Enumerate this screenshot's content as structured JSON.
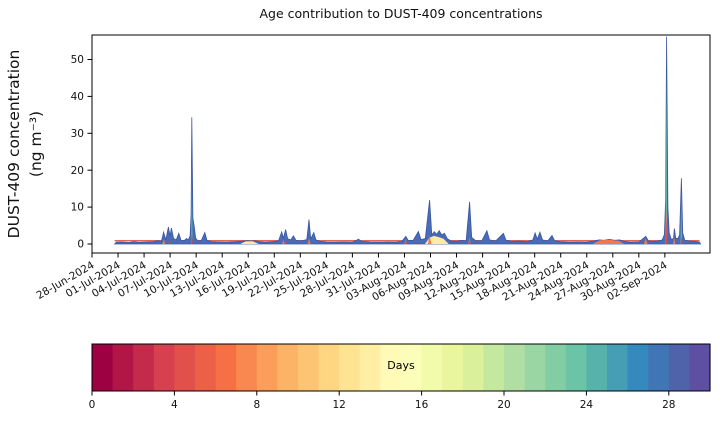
{
  "chart_data": {
    "type": "area",
    "title": "Age contribution to DUST-409 concentrations",
    "ylabel": [
      "DUST-409 concentration",
      "(ng m⁻³)"
    ],
    "xlabel": "",
    "grid": false,
    "legend": "none (colorbar encodes age)",
    "ylim": [
      -2.44,
      57.2
    ],
    "xlim_days": [
      0,
      71.2
    ],
    "y_ticks": [
      0,
      10,
      20,
      30,
      40,
      50
    ],
    "x_tick_days": [
      0,
      3,
      6,
      9,
      12,
      15,
      18,
      21,
      24,
      27,
      30,
      33,
      36,
      39,
      42,
      45,
      48,
      51,
      54,
      57,
      60,
      63,
      66
    ],
    "x_tick_labels": [
      "28-Jun-2024",
      "01-Jul-2024",
      "04-Jul-2024",
      "07-Jul-2024",
      "10-Jul-2024",
      "13-Jul-2024",
      "16-Jul-2024",
      "19-Jul-2024",
      "22-Jul-2024",
      "25-Jul-2024",
      "28-Jul-2024",
      "31-Jul-2024",
      "03-Aug-2024",
      "06-Aug-2024",
      "09-Aug-2024",
      "12-Aug-2024",
      "15-Aug-2024",
      "18-Aug-2024",
      "21-Aug-2024",
      "24-Aug-2024",
      "27-Aug-2024",
      "30-Aug-2024",
      "02-Sep-2024"
    ],
    "x_tick_rotation_deg": -30,
    "layers": [
      {
        "name": "old-age-total-area",
        "color": "#4a6bb5",
        "edge": "#3a57a3",
        "points": [
          [
            2.6,
            0
          ],
          [
            2.8,
            0.5
          ],
          [
            3.5,
            0.55
          ],
          [
            4.2,
            0.4
          ],
          [
            4.8,
            0.6
          ],
          [
            5.4,
            0.45
          ],
          [
            6.2,
            0.55
          ],
          [
            7.0,
            0.6
          ],
          [
            7.6,
            0.9
          ],
          [
            8.0,
            0.7
          ],
          [
            8.25,
            3.2
          ],
          [
            8.5,
            1.1
          ],
          [
            8.8,
            4.6
          ],
          [
            9.0,
            2.2
          ],
          [
            9.15,
            4.3
          ],
          [
            9.4,
            1.5
          ],
          [
            9.7,
            1.1
          ],
          [
            10.0,
            2.9
          ],
          [
            10.25,
            1.0
          ],
          [
            10.6,
            0.9
          ],
          [
            10.9,
            1.5
          ],
          [
            11.1,
            1.1
          ],
          [
            11.3,
            2.2
          ],
          [
            11.42,
            8
          ],
          [
            11.5,
            34.3
          ],
          [
            11.62,
            7
          ],
          [
            11.75,
            5.2
          ],
          [
            11.95,
            1.6
          ],
          [
            12.2,
            0.8
          ],
          [
            12.6,
            1.0
          ],
          [
            13.0,
            3.1
          ],
          [
            13.25,
            1.0
          ],
          [
            13.8,
            0.6
          ],
          [
            14.5,
            0.55
          ],
          [
            15.5,
            0.5
          ],
          [
            16.5,
            0.6
          ],
          [
            17.3,
            0.75
          ],
          [
            17.8,
            0.9
          ],
          [
            18.3,
            0.8
          ],
          [
            18.8,
            0.9
          ],
          [
            19.3,
            0.6
          ],
          [
            20,
            0.5
          ],
          [
            20.8,
            0.6
          ],
          [
            21.5,
            0.9
          ],
          [
            21.85,
            3.3
          ],
          [
            22.05,
            1.6
          ],
          [
            22.3,
            3.9
          ],
          [
            22.55,
            1.4
          ],
          [
            22.9,
            1.1
          ],
          [
            23.2,
            2.2
          ],
          [
            23.5,
            1.0
          ],
          [
            23.9,
            0.8
          ],
          [
            24.4,
            1.0
          ],
          [
            24.75,
            1.2
          ],
          [
            25.0,
            6.6
          ],
          [
            25.2,
            1.4
          ],
          [
            25.55,
            3.1
          ],
          [
            25.8,
            1.1
          ],
          [
            26.3,
            0.7
          ],
          [
            27,
            0.55
          ],
          [
            28,
            0.5
          ],
          [
            29,
            0.55
          ],
          [
            30,
            0.5
          ],
          [
            30.7,
            1.3
          ],
          [
            31.1,
            0.7
          ],
          [
            32,
            0.55
          ],
          [
            33,
            0.5
          ],
          [
            34,
            0.55
          ],
          [
            35,
            0.5
          ],
          [
            35.7,
            0.7
          ],
          [
            36.15,
            2.1
          ],
          [
            36.45,
            0.9
          ],
          [
            37.0,
            1.0
          ],
          [
            37.6,
            3.4
          ],
          [
            37.9,
            1.2
          ],
          [
            38.4,
            1.5
          ],
          [
            38.9,
            11.9
          ],
          [
            39.15,
            2.5
          ],
          [
            39.45,
            3.3
          ],
          [
            39.7,
            2.6
          ],
          [
            40.0,
            3.6
          ],
          [
            40.3,
            2.5
          ],
          [
            40.6,
            2.9
          ],
          [
            40.95,
            1.4
          ],
          [
            41.4,
            0.8
          ],
          [
            42,
            0.7
          ],
          [
            42.6,
            1.0
          ],
          [
            43.1,
            0.8
          ],
          [
            43.5,
            11.4
          ],
          [
            43.75,
            1.8
          ],
          [
            44.2,
            0.9
          ],
          [
            44.9,
            0.8
          ],
          [
            45.5,
            3.6
          ],
          [
            45.8,
            1.1
          ],
          [
            46.5,
            0.8
          ],
          [
            47.4,
            2.9
          ],
          [
            47.7,
            1.0
          ],
          [
            48.4,
            0.7
          ],
          [
            49.2,
            0.8
          ],
          [
            50.1,
            0.6
          ],
          [
            50.8,
            1.1
          ],
          [
            51.05,
            3.0
          ],
          [
            51.3,
            1.3
          ],
          [
            51.6,
            3.2
          ],
          [
            51.9,
            1.1
          ],
          [
            52.5,
            0.8
          ],
          [
            53.0,
            2.3
          ],
          [
            53.3,
            0.9
          ],
          [
            54,
            0.6
          ],
          [
            55,
            0.5
          ],
          [
            56,
            0.55
          ],
          [
            57,
            0.5
          ],
          [
            57.8,
            0.8
          ],
          [
            58.4,
            1.1
          ],
          [
            59.0,
            1.0
          ],
          [
            59.6,
            1.25
          ],
          [
            60.2,
            1.0
          ],
          [
            60.8,
            1.1
          ],
          [
            61.3,
            0.7
          ],
          [
            62,
            0.5
          ],
          [
            63,
            0.55
          ],
          [
            63.8,
            2.1
          ],
          [
            64.1,
            0.8
          ],
          [
            64.7,
            0.7
          ],
          [
            65.2,
            0.8
          ],
          [
            65.7,
            1.1
          ],
          [
            65.95,
            2.6
          ],
          [
            66.08,
            12
          ],
          [
            66.2,
            56.2
          ],
          [
            66.35,
            10
          ],
          [
            66.5,
            3
          ],
          [
            66.75,
            1.2
          ],
          [
            67.0,
            1.5
          ],
          [
            67.1,
            4.2
          ],
          [
            67.25,
            1.6
          ],
          [
            67.5,
            1.5
          ],
          [
            67.7,
            2.5
          ],
          [
            67.9,
            17.8
          ],
          [
            68.05,
            3
          ],
          [
            68.3,
            1.0
          ],
          [
            68.8,
            0.8
          ],
          [
            69.5,
            0.7
          ],
          [
            70.0,
            0.5
          ],
          [
            70.1,
            0
          ]
        ]
      },
      {
        "name": "mid-age-teal-area",
        "color": "#5fb6a3",
        "polygons": [
          [
            [
              11.43,
              0
            ],
            [
              11.5,
              22
            ],
            [
              11.58,
              0
            ]
          ],
          [
            [
              66.07,
              0
            ],
            [
              66.16,
              46
            ],
            [
              66.27,
              0
            ]
          ],
          [
            [
              67.8,
              0
            ],
            [
              67.88,
              14
            ],
            [
              67.97,
              0
            ]
          ]
        ]
      },
      {
        "name": "mid-age-yellow-area",
        "color": "#f9eda6",
        "polygons": [
          [
            [
              17.1,
              0
            ],
            [
              17.7,
              0.7
            ],
            [
              18.5,
              0.75
            ],
            [
              19.2,
              0
            ]
          ],
          [
            [
              38.35,
              0
            ],
            [
              38.9,
              1.7
            ],
            [
              39.4,
              2.2
            ],
            [
              39.9,
              1.9
            ],
            [
              40.5,
              1.4
            ],
            [
              41.1,
              0
            ]
          ]
        ]
      },
      {
        "name": "young-age-orange-area",
        "color": "#f3774a",
        "polygons": [
          [
            [
              8.1,
              0
            ],
            [
              8.28,
              1.3
            ],
            [
              8.45,
              0
            ]
          ],
          [
            [
              21.9,
              0
            ],
            [
              22.05,
              1.2
            ],
            [
              22.2,
              0
            ]
          ],
          [
            [
              24.85,
              0
            ],
            [
              25.0,
              1.5
            ],
            [
              25.18,
              0
            ]
          ],
          [
            [
              36.0,
              0
            ],
            [
              36.15,
              1.3
            ],
            [
              36.3,
              0
            ]
          ],
          [
            [
              38.7,
              0
            ],
            [
              38.9,
              2.2
            ],
            [
              39.1,
              0
            ]
          ],
          [
            [
              43.35,
              0
            ],
            [
              43.5,
              1.7
            ],
            [
              43.65,
              0
            ]
          ],
          [
            [
              57.7,
              0
            ],
            [
              58.5,
              1.0
            ],
            [
              59.6,
              1.1
            ],
            [
              60.7,
              0.9
            ],
            [
              61.3,
              0
            ]
          ],
          [
            [
              63.6,
              0
            ],
            [
              63.8,
              1.6
            ],
            [
              64.0,
              0
            ]
          ],
          [
            [
              66.1,
              0
            ],
            [
              66.2,
              9.5
            ],
            [
              66.33,
              0
            ]
          ],
          [
            [
              66.95,
              0
            ],
            [
              67.08,
              1.9
            ],
            [
              67.2,
              0
            ]
          ],
          [
            [
              67.82,
              0
            ],
            [
              67.92,
              2.8
            ],
            [
              68.02,
              0
            ]
          ]
        ]
      },
      {
        "name": "young-age-red-area",
        "color": "#d2404e",
        "polygons": [
          [
            [
              8.82,
              0
            ],
            [
              8.98,
              1.2
            ],
            [
              9.12,
              0
            ]
          ],
          [
            [
              11.44,
              0
            ],
            [
              11.51,
              2.7
            ],
            [
              11.6,
              0
            ]
          ],
          [
            [
              22.22,
              0
            ],
            [
              22.33,
              1.6
            ],
            [
              22.47,
              0
            ]
          ],
          [
            [
              36.08,
              0
            ],
            [
              36.17,
              0.9
            ],
            [
              36.28,
              0
            ]
          ],
          [
            [
              43.42,
              0
            ],
            [
              43.52,
              1.1
            ],
            [
              43.62,
              0
            ]
          ],
          [
            [
              66.13,
              0
            ],
            [
              66.22,
              7.2
            ],
            [
              66.31,
              0
            ]
          ],
          [
            [
              67.85,
              0
            ],
            [
              67.94,
              2.2
            ],
            [
              68.03,
              0
            ]
          ]
        ]
      }
    ],
    "overlay_line": {
      "name": "thin-red-baseline-line",
      "value": 0.9,
      "start_day": 2.6,
      "end_day": 70.0,
      "color": "#e06458"
    },
    "colorbar": {
      "label": "Days",
      "vmin": 0,
      "vmax": 30,
      "n_segments": 30,
      "ticks": [
        0,
        4,
        8,
        12,
        16,
        20,
        24,
        28
      ],
      "colormap_name": "Spectral",
      "colormap_anchors": [
        "#9e0142",
        "#d53e4f",
        "#f46d43",
        "#fdae61",
        "#fee08b",
        "#ffffbf",
        "#e6f598",
        "#abdda4",
        "#66c2a5",
        "#3288bd",
        "#5e4fa2"
      ]
    },
    "axis_color": "#000000",
    "background_color": "#ffffff"
  }
}
